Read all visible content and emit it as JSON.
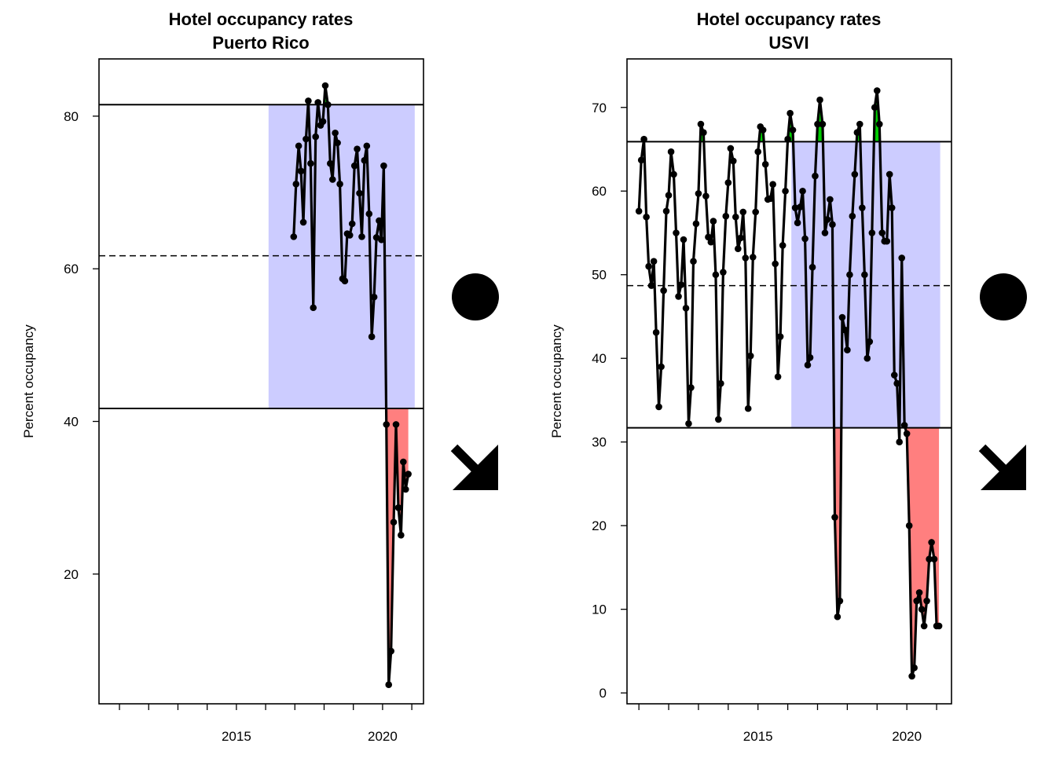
{
  "chart_data": [
    {
      "type": "line",
      "title": "Hotel occupancy rates",
      "subtitle": "Puerto Rico",
      "xlabel": "",
      "ylabel": "Percent occupancy",
      "xlim": [
        2010.3,
        2021.4
      ],
      "ylim": [
        3.0,
        87.5
      ],
      "xticks": [
        2011,
        2012,
        2013,
        2014,
        2015,
        2016,
        2017,
        2018,
        2019,
        2020,
        2021
      ],
      "xtick_labels": [
        "",
        "",
        "",
        "",
        "2015",
        "",
        "",
        "",
        "",
        "2020",
        ""
      ],
      "yticks": [
        20,
        40,
        60,
        80
      ],
      "mean_line": 61.7,
      "upper_limit": 81.5,
      "lower_limit": 41.7,
      "band": {
        "x_start": 2016.1,
        "x_end": 2021.1,
        "color": "#ccccff"
      },
      "highlight_color_low": "#ff7f7f",
      "highlight_color_high": "#00cc00",
      "marker": {
        "shape": "circle"
      },
      "trend_arrow": "down-right-arrow-icon",
      "series": [
        {
          "x": [
            2016.96,
            2017.04,
            2017.13,
            2017.21,
            2017.29,
            2017.38,
            2017.46,
            2017.54,
            2017.63,
            2017.71,
            2017.79,
            2017.88,
            2017.96,
            2018.04,
            2018.13,
            2018.21,
            2018.29,
            2018.38,
            2018.46,
            2018.54,
            2018.63,
            2018.71,
            2018.79,
            2018.88,
            2018.96,
            2019.04,
            2019.13,
            2019.21,
            2019.29,
            2019.38,
            2019.46,
            2019.54,
            2019.63,
            2019.71,
            2019.79,
            2019.88,
            2019.96,
            2020.04,
            2020.13,
            2020.21,
            2020.29,
            2020.38,
            2020.46,
            2020.54,
            2020.63,
            2020.71,
            2020.79,
            2020.88
          ],
          "y": [
            64.2,
            71.1,
            76.1,
            72.8,
            66.1,
            77.0,
            82.0,
            73.8,
            54.9,
            77.3,
            81.8,
            78.8,
            79.3,
            84.0,
            81.5,
            73.8,
            71.7,
            77.8,
            76.5,
            71.1,
            58.7,
            58.4,
            64.6,
            64.4,
            65.9,
            73.5,
            75.7,
            69.9,
            64.2,
            74.2,
            76.1,
            67.2,
            51.1,
            56.3,
            64.1,
            66.3,
            63.8,
            73.5,
            39.6,
            5.5,
            9.9,
            26.8,
            39.6,
            28.7,
            25.1,
            34.7,
            31.1,
            33.1
          ]
        }
      ]
    },
    {
      "type": "line",
      "title": "Hotel occupancy rates",
      "subtitle": "USVI",
      "xlabel": "",
      "ylabel": "Percent occupancy",
      "xlim": [
        2010.6,
        2021.5
      ],
      "ylim": [
        -1.3,
        75.8
      ],
      "xticks": [
        2011,
        2012,
        2013,
        2014,
        2015,
        2016,
        2017,
        2018,
        2019,
        2020,
        2021
      ],
      "xtick_labels": [
        "",
        "",
        "",
        "",
        "2015",
        "",
        "",
        "",
        "",
        "2020",
        ""
      ],
      "yticks": [
        0,
        10,
        20,
        30,
        40,
        50,
        60,
        70
      ],
      "mean_line": 48.7,
      "upper_limit": 65.9,
      "lower_limit": 31.7,
      "band": {
        "x_start": 2016.12,
        "x_end": 2021.12,
        "color": "#ccccff"
      },
      "highlight_color_low": "#ff7f7f",
      "highlight_color_high": "#00cc00",
      "marker": {
        "shape": "circle"
      },
      "trend_arrow": "down-right-arrow-icon",
      "series": [
        {
          "x": [
            2011.0,
            2011.08,
            2011.17,
            2011.25,
            2011.33,
            2011.42,
            2011.5,
            2011.58,
            2011.67,
            2011.75,
            2011.83,
            2011.92,
            2012.0,
            2012.08,
            2012.17,
            2012.25,
            2012.33,
            2012.42,
            2012.5,
            2012.58,
            2012.67,
            2012.75,
            2012.83,
            2012.92,
            2013.0,
            2013.08,
            2013.17,
            2013.25,
            2013.33,
            2013.42,
            2013.5,
            2013.58,
            2013.67,
            2013.75,
            2013.83,
            2013.92,
            2014.0,
            2014.08,
            2014.17,
            2014.25,
            2014.33,
            2014.42,
            2014.5,
            2014.58,
            2014.67,
            2014.75,
            2014.83,
            2014.92,
            2015.0,
            2015.08,
            2015.17,
            2015.25,
            2015.33,
            2015.42,
            2015.5,
            2015.58,
            2015.67,
            2015.75,
            2015.83,
            2015.92,
            2016.0,
            2016.08,
            2016.17,
            2016.25,
            2016.33,
            2016.42,
            2016.5,
            2016.58,
            2016.67,
            2016.75,
            2016.83,
            2016.92,
            2017.0,
            2017.08,
            2017.17,
            2017.25,
            2017.33,
            2017.42,
            2017.5,
            2017.58,
            2017.67,
            2017.75,
            2017.83,
            2017.92,
            2018.0,
            2018.08,
            2018.17,
            2018.25,
            2018.33,
            2018.42,
            2018.5,
            2018.58,
            2018.67,
            2018.75,
            2018.83,
            2018.92,
            2019.0,
            2019.08,
            2019.17,
            2019.25,
            2019.33,
            2019.42,
            2019.5,
            2019.58,
            2019.67,
            2019.75,
            2019.83,
            2019.92,
            2020.0,
            2020.08,
            2020.17,
            2020.25,
            2020.33,
            2020.42,
            2020.5,
            2020.58,
            2020.67,
            2020.75,
            2020.83,
            2020.92,
            2021.0,
            2021.08
          ],
          "y": [
            57.6,
            63.7,
            66.2,
            56.9,
            51.0,
            48.7,
            51.6,
            43.1,
            34.2,
            39.0,
            48.1,
            57.6,
            59.5,
            64.7,
            62.0,
            55.0,
            47.4,
            48.8,
            54.2,
            46.0,
            32.2,
            36.5,
            51.6,
            56.1,
            59.7,
            68.0,
            67.0,
            59.4,
            54.5,
            53.9,
            56.4,
            50.0,
            32.7,
            37.0,
            50.3,
            57.0,
            61.0,
            65.1,
            63.6,
            56.9,
            53.1,
            54.4,
            57.5,
            52.0,
            34.0,
            40.3,
            52.1,
            57.5,
            64.7,
            67.7,
            67.3,
            63.2,
            59.0,
            59.1,
            60.8,
            51.3,
            37.8,
            42.6,
            53.5,
            60.0,
            66.2,
            69.3,
            67.3,
            58.0,
            56.2,
            58.1,
            60.0,
            54.3,
            39.2,
            40.1,
            50.9,
            61.8,
            68.0,
            70.9,
            68.0,
            55.0,
            56.6,
            59.0,
            56.0,
            21.0,
            9.1,
            11.0,
            44.9,
            43.4,
            41.0,
            50.0,
            57.0,
            62.0,
            67.0,
            68.0,
            58.0,
            50.0,
            40.0,
            42.0,
            55.0,
            70.0,
            72.0,
            68.0,
            55.0,
            54.0,
            54.0,
            62.0,
            58.0,
            38.0,
            37.0,
            30.0,
            52.0,
            32.0,
            31.0,
            20.0,
            2.0,
            3.0,
            11.0,
            12.0,
            10.0,
            8.0,
            11.0,
            16.0,
            18.0,
            16.0,
            8.0,
            8.0
          ]
        }
      ]
    }
  ]
}
